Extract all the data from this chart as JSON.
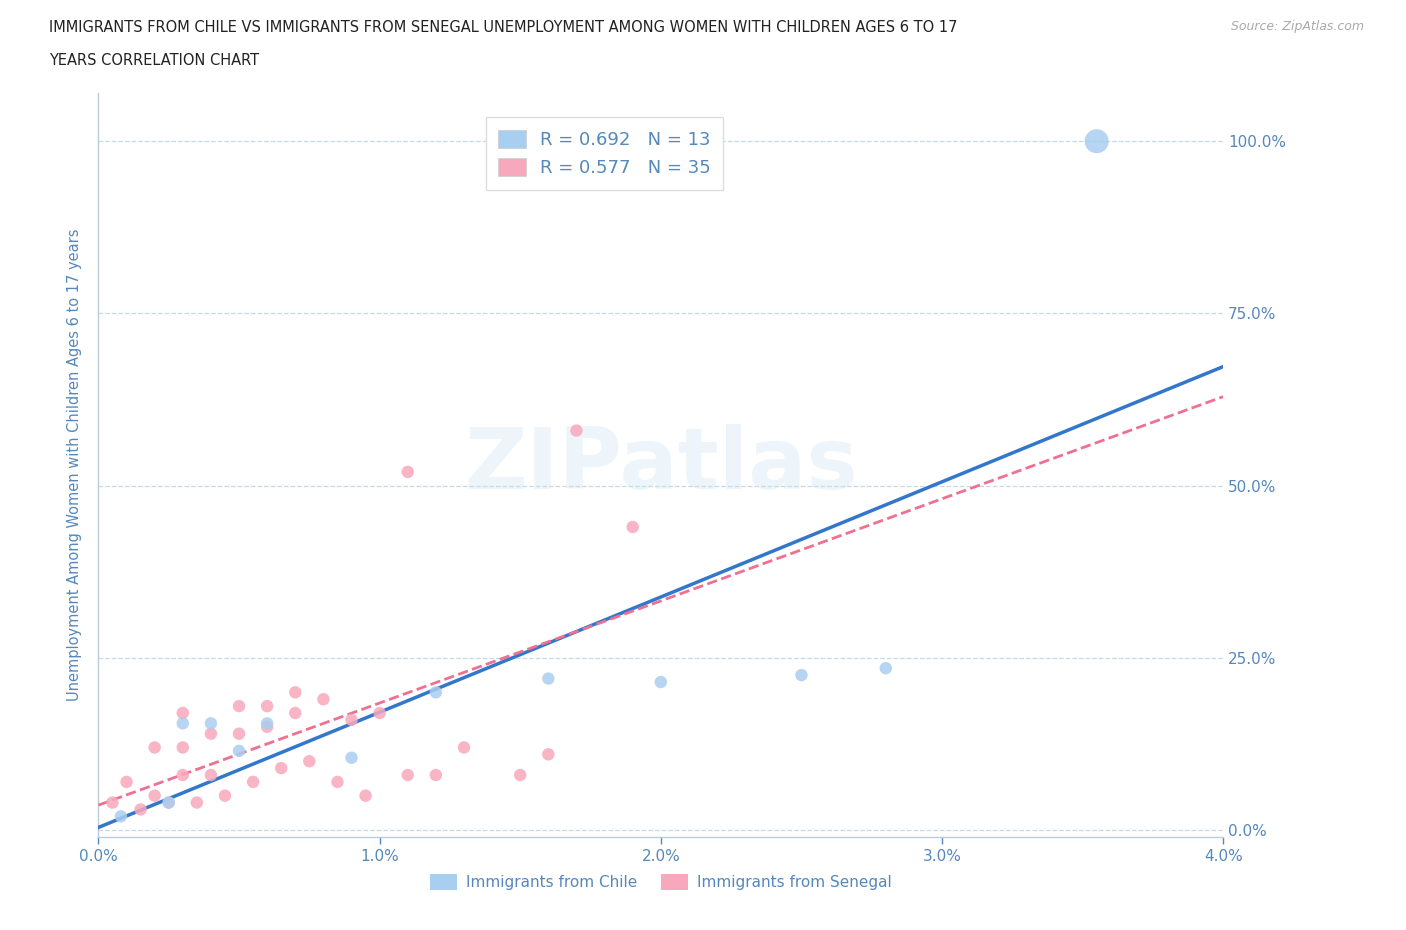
{
  "title_line1": "IMMIGRANTS FROM CHILE VS IMMIGRANTS FROM SENEGAL UNEMPLOYMENT AMONG WOMEN WITH CHILDREN AGES 6 TO 17",
  "title_line2": "YEARS CORRELATION CHART",
  "source": "Source: ZipAtlas.com",
  "ylabel": "Unemployment Among Women with Children Ages 6 to 17 years",
  "xlim": [
    0.0,
    0.04
  ],
  "ylim": [
    -0.01,
    1.07
  ],
  "xticks": [
    0.0,
    0.01,
    0.02,
    0.03,
    0.04
  ],
  "xtick_labels": [
    "0.0%",
    "1.0%",
    "2.0%",
    "3.0%",
    "4.0%"
  ],
  "yticks_right": [
    0.0,
    0.25,
    0.5,
    0.75,
    1.0
  ],
  "ytick_labels_right": [
    "0.0%",
    "25.0%",
    "50.0%",
    "75.0%",
    "100.0%"
  ],
  "chile_color": "#a8cef0",
  "senegal_color": "#f8a8bc",
  "chile_line_color": "#3377cc",
  "senegal_line_color": "#f07090",
  "axis_color": "#bbccdd",
  "text_color": "#5588bb",
  "legend_text_color": "#222222",
  "title_color": "#222222",
  "R_chile": 0.692,
  "N_chile": 13,
  "R_senegal": 0.577,
  "N_senegal": 35,
  "chile_x": [
    0.0008,
    0.0025,
    0.003,
    0.004,
    0.005,
    0.006,
    0.009,
    0.012,
    0.016,
    0.02,
    0.025,
    0.028,
    0.0355
  ],
  "chile_y": [
    0.02,
    0.04,
    0.155,
    0.155,
    0.115,
    0.155,
    0.105,
    0.2,
    0.22,
    0.215,
    0.225,
    0.235,
    1.0
  ],
  "chile_sizes": [
    80,
    80,
    80,
    80,
    80,
    80,
    80,
    80,
    80,
    80,
    80,
    80,
    300
  ],
  "senegal_x": [
    0.0005,
    0.001,
    0.0015,
    0.002,
    0.002,
    0.0025,
    0.003,
    0.003,
    0.003,
    0.0035,
    0.004,
    0.004,
    0.0045,
    0.005,
    0.005,
    0.0055,
    0.006,
    0.006,
    0.0065,
    0.007,
    0.007,
    0.0075,
    0.008,
    0.0085,
    0.009,
    0.0095,
    0.01,
    0.011,
    0.011,
    0.012,
    0.013,
    0.015,
    0.016,
    0.017,
    0.019
  ],
  "senegal_y": [
    0.04,
    0.07,
    0.03,
    0.05,
    0.12,
    0.04,
    0.08,
    0.12,
    0.17,
    0.04,
    0.08,
    0.14,
    0.05,
    0.14,
    0.18,
    0.07,
    0.15,
    0.18,
    0.09,
    0.17,
    0.2,
    0.1,
    0.19,
    0.07,
    0.16,
    0.05,
    0.17,
    0.08,
    0.52,
    0.08,
    0.12,
    0.08,
    0.11,
    0.58,
    0.44
  ],
  "senegal_sizes": [
    80,
    80,
    80,
    80,
    80,
    80,
    80,
    80,
    80,
    80,
    80,
    80,
    80,
    80,
    80,
    80,
    80,
    80,
    80,
    80,
    80,
    80,
    80,
    80,
    80,
    80,
    80,
    80,
    80,
    80,
    80,
    80,
    80,
    80,
    80
  ],
  "watermark": "ZIPatlas",
  "background_color": "#ffffff",
  "grid_color": "#c5dae8"
}
